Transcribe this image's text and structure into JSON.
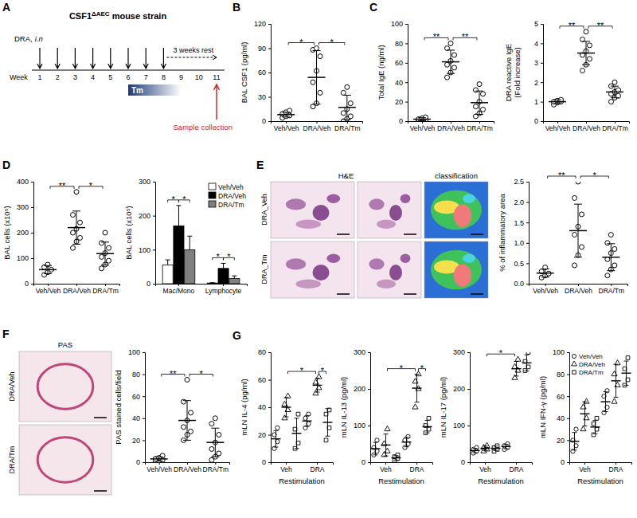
{
  "schematic": {
    "panel": "A",
    "strain": "CSF1",
    "strain_sup": "ΔAEC",
    "strain_suffix": "mouse strain",
    "dra_label": "DRA,",
    "dra_route": "i.n",
    "week_label": "Week",
    "weeks": [
      1,
      2,
      3,
      4,
      5,
      6,
      7,
      8,
      9,
      10,
      11
    ],
    "dra_weeks": [
      1,
      2,
      3,
      4,
      5,
      6,
      7,
      8
    ],
    "rest_label": "3 weeks rest",
    "rest_weeks": [
      8,
      11
    ],
    "tm_label": "Tm",
    "tm_weeks": [
      6,
      9
    ],
    "sample_label": "Sample collection",
    "sample_week": 11
  },
  "images": [
    {
      "panel": "E",
      "column_titles": [
        "H&E",
        "classification"
      ],
      "row_labels": [
        "DRA_Veh",
        "DRA_Tm"
      ]
    },
    {
      "panel": "F",
      "column_titles": [
        "PAS"
      ],
      "row_labels": [
        "DRA/Veh",
        "DRA/Tm"
      ]
    }
  ],
  "chart_data": [
    {
      "panel": "B",
      "type": "dot_plot",
      "ylabel": "BAL CSF1 (pg/ml)",
      "categories": [
        "Veh/Veh",
        "DRA/Veh",
        "DRA/Tm"
      ],
      "points": [
        [
          4,
          6,
          7,
          9,
          11,
          13
        ],
        [
          18,
          22,
          35,
          48,
          62,
          80,
          88,
          90
        ],
        [
          0,
          3,
          6,
          10,
          15,
          22,
          35,
          42
        ]
      ],
      "mean": [
        8,
        54,
        17
      ],
      "sd": [
        3,
        33,
        15
      ],
      "ylim": [
        0,
        120
      ],
      "yticks": [
        0,
        30,
        60,
        90,
        120
      ],
      "annotations": [
        {
          "text": "*",
          "between": [
            0,
            1
          ]
        },
        {
          "text": "*",
          "between": [
            1,
            2
          ]
        }
      ]
    },
    {
      "panel": "C",
      "type": "dot_plot",
      "ylabel": "Total IgE (ng/ml)",
      "categories": [
        "Veh/Veh",
        "DRA/Veh",
        "DRA/Tm"
      ],
      "points": [
        [
          0,
          1,
          1,
          2,
          3,
          4
        ],
        [
          45,
          50,
          55,
          58,
          62,
          68,
          75,
          80
        ],
        [
          5,
          8,
          12,
          15,
          20,
          28,
          32,
          38
        ]
      ],
      "mean": [
        2,
        61,
        19
      ],
      "sd": [
        1.5,
        12,
        12
      ],
      "ylim": [
        0,
        100
      ],
      "yticks": [
        0,
        20,
        40,
        60,
        80,
        100
      ],
      "annotations": [
        {
          "text": "**",
          "between": [
            0,
            1
          ]
        },
        {
          "text": "**",
          "between": [
            1,
            2
          ]
        }
      ]
    },
    {
      "type": "dot_plot",
      "ylabel": [
        "DRA reactive IgE",
        "(Fold increase)"
      ],
      "categories": [
        "Veh/Veh",
        "DRA/Veh",
        "DRA/Tm"
      ],
      "points": [
        [
          0.85,
          0.95,
          1.0,
          1.0,
          1.05,
          1.1
        ],
        [
          2.6,
          2.9,
          3.2,
          3.4,
          3.6,
          3.9,
          4.2,
          4.6
        ],
        [
          1.0,
          1.2,
          1.3,
          1.4,
          1.5,
          1.6,
          1.8,
          2.0
        ]
      ],
      "mean": [
        1.0,
        3.5,
        1.5
      ],
      "sd": [
        0.1,
        0.6,
        0.3
      ],
      "ylim": [
        0,
        5
      ],
      "yticks": [
        0,
        1,
        2,
        3,
        4,
        5
      ],
      "annotations": [
        {
          "text": "**",
          "between": [
            0,
            1
          ]
        },
        {
          "text": "**",
          "between": [
            1,
            2
          ]
        }
      ]
    },
    {
      "panel": "D",
      "type": "dot_plot",
      "ylabel": "BAL cells (x10⁵)",
      "categories": [
        "Veh/Veh",
        "DRA/Veh",
        "DRA/Tm"
      ],
      "points": [
        [
          35,
          45,
          55,
          65,
          75
        ],
        [
          140,
          165,
          180,
          200,
          215,
          240,
          270,
          360
        ],
        [
          60,
          75,
          90,
          105,
          120,
          140,
          160,
          200
        ]
      ],
      "mean": [
        55,
        220,
        118
      ],
      "sd": [
        16,
        65,
        45
      ],
      "ylim": [
        0,
        400
      ],
      "yticks": [
        0,
        100,
        200,
        300,
        400
      ],
      "annotations": [
        {
          "text": "**",
          "between": [
            0,
            1
          ]
        },
        {
          "text": "*",
          "between": [
            1,
            2
          ]
        }
      ]
    },
    {
      "type": "bar",
      "ylabel": "BAL cells (x10⁵)",
      "categories": [
        "Mac/Mono",
        "Lymphocyte"
      ],
      "series": [
        {
          "name": "Veh/Veh",
          "color": "#ffffff",
          "values": [
            55,
            2
          ],
          "errors": [
            15,
            1
          ]
        },
        {
          "name": "DRA/Veh",
          "color": "#000000",
          "values": [
            170,
            45
          ],
          "errors": [
            60,
            15
          ]
        },
        {
          "name": "DRA/Tm",
          "color": "#808080",
          "values": [
            100,
            15
          ],
          "errors": [
            40,
            8
          ]
        }
      ],
      "ylim": [
        0,
        300
      ],
      "yticks": [
        0,
        100,
        200,
        300
      ],
      "legend": "top-right",
      "annotations": [
        {
          "text": "*",
          "category": 0,
          "between": [
            0,
            1
          ]
        },
        {
          "text": "*",
          "category": 0,
          "between": [
            1,
            2
          ]
        },
        {
          "text": "*",
          "category": 1,
          "between": [
            0,
            1
          ]
        },
        {
          "text": "*",
          "category": 1,
          "between": [
            1,
            2
          ]
        }
      ]
    },
    {
      "type": "dot_plot",
      "ylabel": "% of inflammatory area",
      "categories": [
        "Veh/Veh",
        "DRA/Veh",
        "DRA/Tm"
      ],
      "points": [
        [
          0.15,
          0.2,
          0.25,
          0.3,
          0.4
        ],
        [
          0.45,
          0.7,
          0.9,
          1.2,
          1.4,
          1.7,
          2.1,
          2.5
        ],
        [
          0.2,
          0.35,
          0.45,
          0.6,
          0.75,
          0.85,
          1.0,
          1.2
        ]
      ],
      "mean": [
        0.26,
        1.3,
        0.65
      ],
      "sd": [
        0.1,
        0.65,
        0.33
      ],
      "ylim": [
        0,
        2.5
      ],
      "yticks": [
        {
          "value": 0,
          "label": "0.0"
        },
        0.5,
        {
          "value": 1,
          "label": "1.0"
        },
        1.5,
        {
          "value": 2,
          "label": "2.0"
        },
        2.5
      ],
      "annotations": [
        {
          "text": "**",
          "between": [
            0,
            1
          ]
        },
        {
          "text": "*",
          "between": [
            1,
            2
          ]
        }
      ]
    },
    {
      "type": "dot_plot",
      "ylabel": "PAS stained cells/field",
      "categories": [
        "Veh/Veh",
        "DRA/Veh",
        "DRA/Tm"
      ],
      "points": [
        [
          0,
          1,
          2,
          3,
          4,
          6
        ],
        [
          20,
          25,
          28,
          32,
          38,
          45,
          55,
          75
        ],
        [
          2,
          5,
          8,
          12,
          18,
          25,
          35,
          40
        ]
      ],
      "mean": [
        3,
        38,
        18
      ],
      "sd": [
        2,
        18,
        13
      ],
      "ylim": [
        0,
        100
      ],
      "yticks": [
        0,
        20,
        40,
        60,
        80,
        100
      ],
      "annotations": [
        {
          "text": "**",
          "between": [
            0,
            1
          ]
        },
        {
          "text": "*",
          "between": [
            1,
            2
          ]
        }
      ]
    },
    {
      "panel": "G",
      "type": "grouped_dot_plot",
      "ylabel": "mLN IL-4 (pg/ml)",
      "xlabel": "Restimulation",
      "categories": [
        "Veh",
        "DRA"
      ],
      "series": [
        {
          "marker": "circle",
          "points": [
            [
              10,
              15,
              20,
              25
            ],
            [
              25,
              28,
              32,
              35
            ]
          ],
          "mean": [
            17,
            30
          ],
          "sd": [
            6,
            4
          ]
        },
        {
          "marker": "triangle",
          "points": [
            [
              32,
              38,
              42,
              48
            ],
            [
              50,
              54,
              58,
              62
            ]
          ],
          "mean": [
            40,
            56
          ],
          "sd": [
            7,
            5
          ]
        },
        {
          "marker": "square",
          "points": [
            [
              10,
              14,
              24,
              35
            ],
            [
              16,
              25,
              35,
              38
            ]
          ],
          "mean": [
            21,
            29
          ],
          "sd": [
            11,
            10
          ]
        }
      ],
      "ylim": [
        0,
        80
      ],
      "yticks": [
        0,
        20,
        40,
        60,
        80
      ],
      "annotations": [
        {
          "text": "*",
          "from": [
            1,
            0
          ],
          "to": [
            1,
            1
          ]
        },
        {
          "text": "*",
          "from": [
            1,
            1
          ],
          "to": [
            2,
            1
          ]
        }
      ]
    },
    {
      "type": "grouped_dot_plot",
      "ylabel": "mLN IL-13 (pg/ml)",
      "xlabel": "Restimulation",
      "categories": [
        "Veh",
        "DRA"
      ],
      "series": [
        {
          "marker": "circle",
          "points": [
            [
              20,
              30,
              40,
              60
            ],
            [
              40,
              50,
              60,
              70
            ]
          ],
          "mean": [
            37,
            55
          ],
          "sd": [
            17,
            13
          ]
        },
        {
          "marker": "triangle",
          "points": [
            [
              20,
              30,
              50,
              90
            ],
            [
              150,
              200,
              220,
              240
            ]
          ],
          "mean": [
            47,
            202
          ],
          "sd": [
            30,
            38
          ]
        },
        {
          "marker": "square",
          "points": [
            [
              5,
              10,
              15,
              20
            ],
            [
              80,
              90,
              100,
              120
            ]
          ],
          "mean": [
            12,
            97
          ],
          "sd": [
            6,
            17
          ]
        }
      ],
      "ylim": [
        0,
        300
      ],
      "yticks": [
        0,
        100,
        200,
        300
      ],
      "annotations": [
        {
          "text": "*",
          "from": [
            1,
            0
          ],
          "to": [
            1,
            1
          ]
        },
        {
          "text": "*",
          "from": [
            1,
            1
          ],
          "to": [
            2,
            1
          ]
        }
      ]
    },
    {
      "type": "grouped_dot_plot",
      "ylabel": "mLN IL-17 (pg/ml)",
      "xlabel": "Restimulation",
      "categories": [
        "Veh",
        "DRA"
      ],
      "series": [
        {
          "marker": "circle",
          "points": [
            [
              25,
              30,
              35,
              40
            ],
            [
              35,
              40,
              45,
              50
            ]
          ],
          "mean": [
            32,
            43
          ],
          "sd": [
            6,
            6
          ]
        },
        {
          "marker": "triangle",
          "points": [
            [
              30,
              35,
              40,
              45
            ],
            [
              230,
              250,
              260,
              280
            ]
          ],
          "mean": [
            38,
            255
          ],
          "sd": [
            6,
            20
          ]
        },
        {
          "marker": "square",
          "points": [
            [
              30,
              35,
              40,
              45
            ],
            [
              250,
              260,
              275,
              300
            ]
          ],
          "mean": [
            38,
            271
          ],
          "sd": [
            6,
            22
          ]
        }
      ],
      "ylim": [
        0,
        300
      ],
      "yticks": [
        0,
        100,
        200,
        300
      ],
      "annotations": [
        {
          "text": "*",
          "from": [
            1,
            0
          ],
          "to": [
            1,
            1
          ]
        }
      ]
    },
    {
      "type": "grouped_dot_plot",
      "ylabel": "mLN IFN-γ (pg/ml)",
      "xlabel": "Restimulation",
      "categories": [
        "Veh",
        "DRA"
      ],
      "series": [
        {
          "name": "Veh/Veh",
          "marker": "circle",
          "points": [
            [
              10,
              15,
              20,
              30
            ],
            [
              45,
              50,
              60,
              65
            ]
          ],
          "mean": [
            19,
            55
          ],
          "sd": [
            8,
            9
          ]
        },
        {
          "name": "DRA/Veh",
          "marker": "triangle",
          "points": [
            [
              30,
              40,
              50,
              55
            ],
            [
              55,
              70,
              80,
              90
            ]
          ],
          "mean": [
            44,
            74
          ],
          "sd": [
            11,
            15
          ]
        },
        {
          "name": "DRA/Tm",
          "marker": "square",
          "points": [
            [
              25,
              30,
              35,
              40
            ],
            [
              70,
              75,
              85,
              95
            ]
          ],
          "mean": [
            32,
            81
          ],
          "sd": [
            6,
            11
          ]
        }
      ],
      "ylim": [
        0,
        100
      ],
      "yticks": [
        0,
        20,
        40,
        60,
        80,
        100
      ],
      "legend": "top-left"
    }
  ]
}
